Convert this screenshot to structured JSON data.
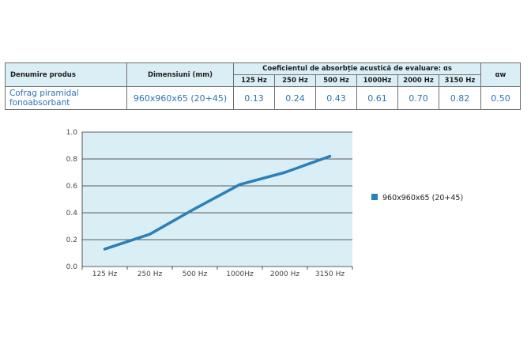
{
  "table": {
    "header": {
      "product": "Denumire produs",
      "dimensions": "Dimensiuni (mm)",
      "coefficient_group": "Coeficientul de absorbție acustică de evaluare: αs",
      "frequencies": [
        "125 Hz",
        "250 Hz",
        "500 Hz",
        "1000Hz",
        "2000 Hz",
        "3150 Hz"
      ],
      "aw": "αw"
    },
    "row": {
      "product_line1": "Cofrag piramidal",
      "product_line2": "fonoabsorbant",
      "dimensions": "960x960x65 (20+45)",
      "values": [
        "0.13",
        "0.24",
        "0.43",
        "0.61",
        "0.70",
        "0.82"
      ],
      "aw": "0.50"
    }
  },
  "chart_data": {
    "type": "line",
    "categories": [
      "125 Hz",
      "250 Hz",
      "500 Hz",
      "1000Hz",
      "2000 Hz",
      "3150 Hz"
    ],
    "series": [
      {
        "name": "960x960x65 (20+45)",
        "values": [
          0.13,
          0.24,
          0.43,
          0.61,
          0.7,
          0.82
        ]
      }
    ],
    "ylim": [
      0,
      1.0
    ],
    "yticks": [
      "0.0",
      "0.2",
      "0.4",
      "0.6",
      "0.8",
      "1.0"
    ],
    "grid": true,
    "legend_position": "right",
    "colors": {
      "series": "#2a80b9",
      "plot_bg": "#daeef5",
      "grid": "#2b2b2b"
    }
  }
}
